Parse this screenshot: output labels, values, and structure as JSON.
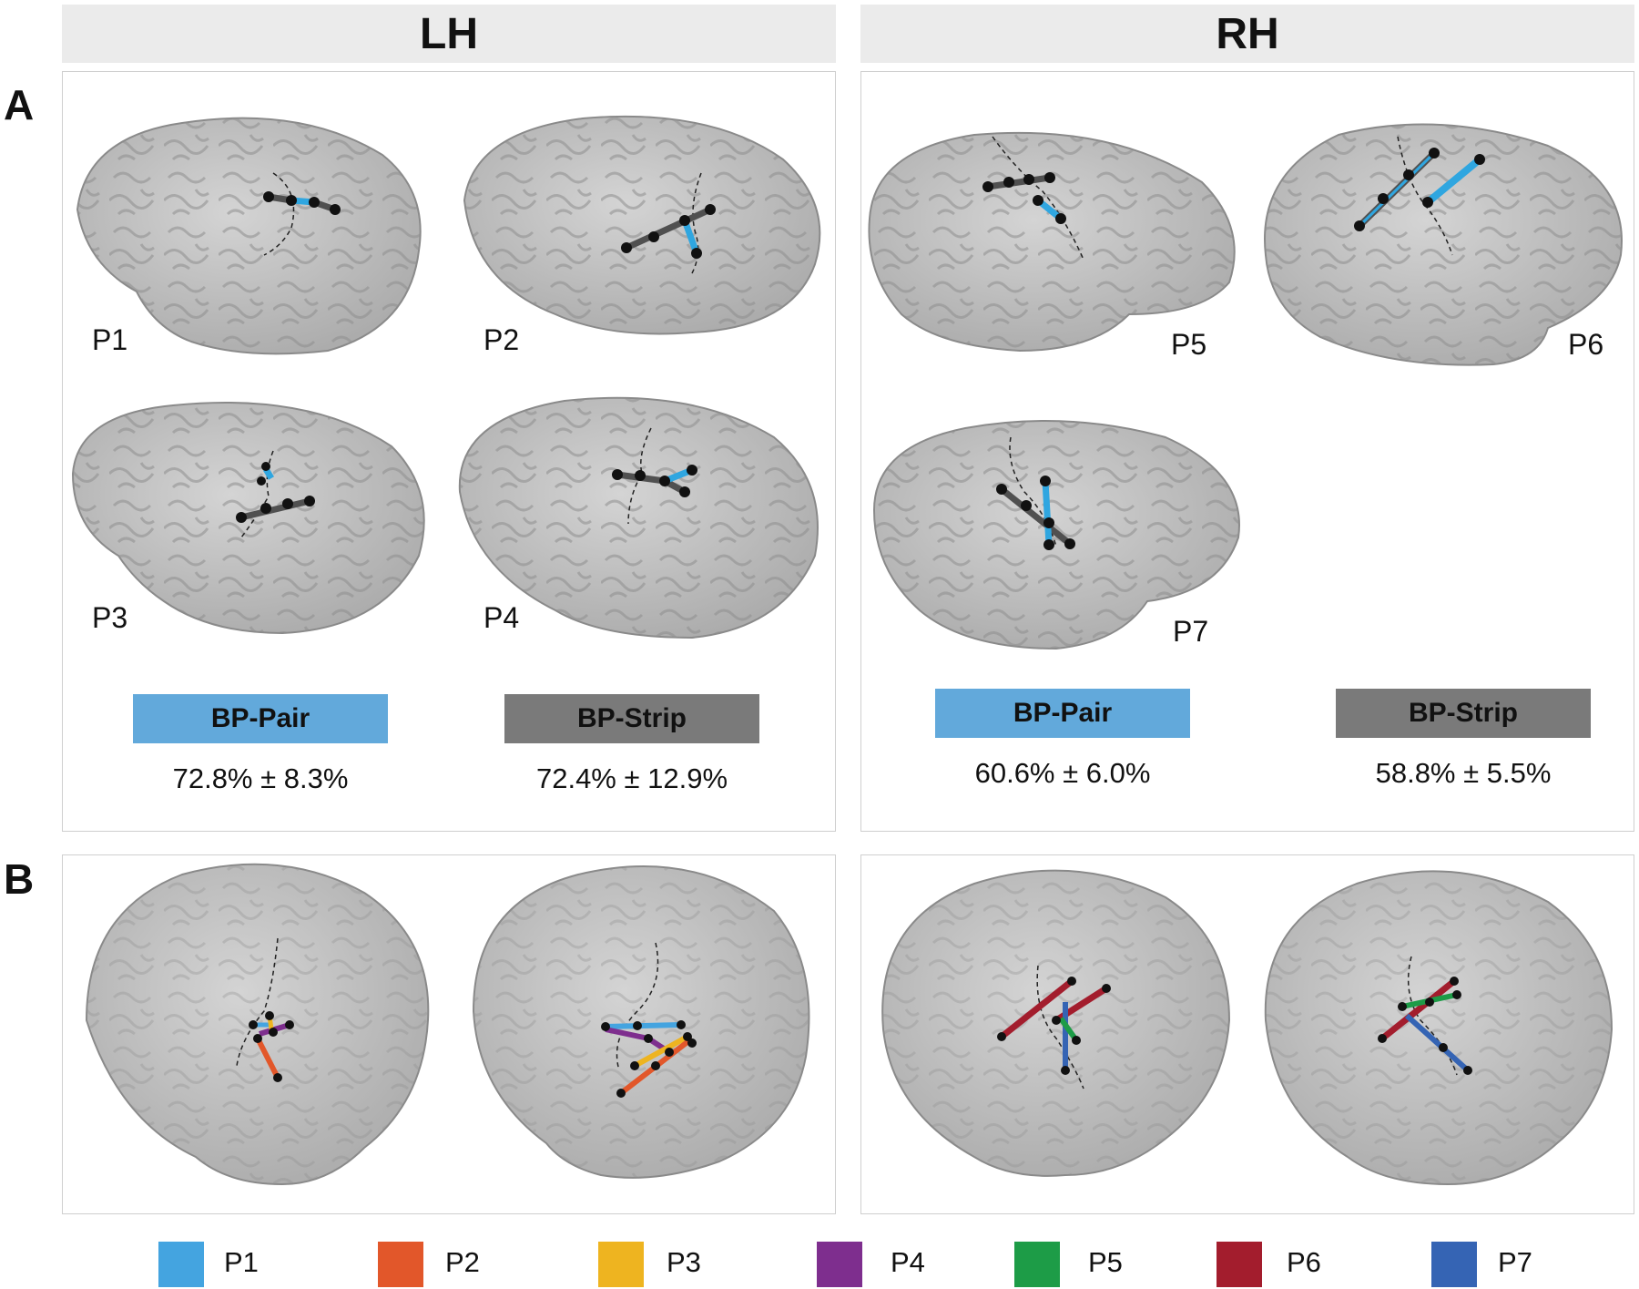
{
  "headers": {
    "left": "LH",
    "right": "RH"
  },
  "panel_letters": {
    "a": "A",
    "b": "B"
  },
  "patients": [
    "P1",
    "P2",
    "P3",
    "P4",
    "P5",
    "P6",
    "P7"
  ],
  "legend_a": {
    "pair_label": "BP-Pair",
    "strip_label": "BP-Strip",
    "pair_color": "#62a9db",
    "strip_color": "#7a7a7a",
    "lh_pair_stat": "72.8% ± 8.3%",
    "lh_strip_stat": "72.4% ± 12.9%",
    "rh_pair_stat": "60.6% ± 6.0%",
    "rh_strip_stat": "58.8% ± 5.5%"
  },
  "patient_colors": [
    {
      "label": "P1",
      "color": "#44a4e0"
    },
    {
      "label": "P2",
      "color": "#e2572a"
    },
    {
      "label": "P3",
      "color": "#eeb420"
    },
    {
      "label": "P4",
      "color": "#7e2e8e"
    },
    {
      "label": "P5",
      "color": "#1d9c47"
    },
    {
      "label": "P6",
      "color": "#a31d2d"
    },
    {
      "label": "P7",
      "color": "#3564b4"
    }
  ],
  "colors": {
    "brain": "#c4c4c4",
    "brain_dark": "#9a9a9a",
    "electrode": "#111111",
    "pair": "#2fa6e0",
    "strip": "#505050"
  }
}
